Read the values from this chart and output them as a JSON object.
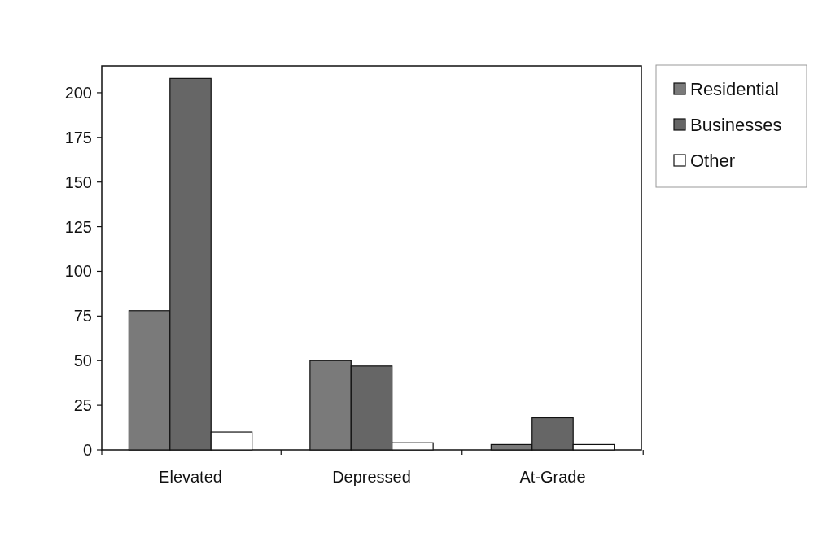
{
  "chart_data": {
    "type": "bar",
    "categories": [
      "Elevated",
      "Depressed",
      "At-Grade"
    ],
    "series": [
      {
        "name": "Residential",
        "color": "#7a7a7a",
        "values": [
          78,
          50,
          3
        ]
      },
      {
        "name": "Businesses",
        "color": "#666666",
        "values": [
          208,
          47,
          18
        ]
      },
      {
        "name": "Other",
        "color": "#ffffff",
        "values": [
          10,
          4,
          3
        ]
      }
    ],
    "ylim": [
      0,
      215
    ],
    "yticks": [
      0,
      25,
      50,
      75,
      100,
      125,
      150,
      175,
      200
    ],
    "grid": false,
    "legend": "top right"
  }
}
